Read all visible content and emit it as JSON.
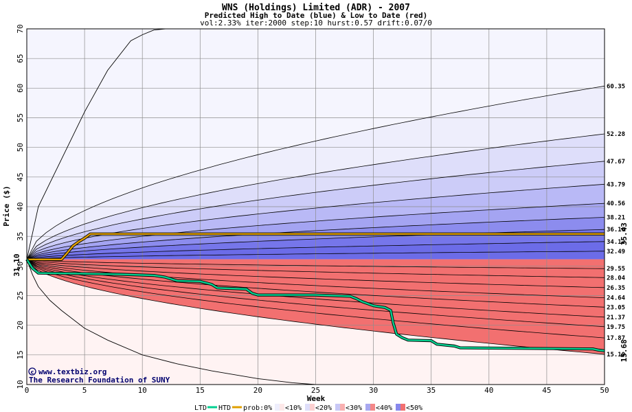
{
  "chart_data": {
    "type": "area",
    "title": "WNS (Holdings) Limited (ADR) - 2007",
    "subtitle": "Predicted High to Date (blue) &  Low to Date (red)",
    "params": "vol:2.33% iter:2000 step:10 hurst:0.57 drift:0.07/0",
    "xlabel": "Week",
    "ylabel": "Price ($)",
    "xlim": [
      0,
      50
    ],
    "ylim": [
      10,
      70
    ],
    "xticks": [
      0,
      5,
      10,
      15,
      20,
      25,
      30,
      35,
      40,
      45,
      50
    ],
    "yticks": [
      10,
      15,
      20,
      25,
      30,
      35,
      40,
      45,
      50,
      55,
      60,
      65,
      70
    ],
    "grid": true,
    "start_price": 31.1,
    "start_label": "31.10",
    "high_bands_end": [
      60.35,
      52.28,
      47.67,
      43.79,
      40.56,
      38.21,
      36.16,
      34.12,
      32.49
    ],
    "low_bands_end": [
      29.55,
      28.04,
      26.35,
      24.64,
      23.05,
      21.37,
      19.75,
      17.87,
      15.1
    ],
    "outer_high": {
      "x": [
        0,
        1,
        3,
        5,
        7,
        9,
        10,
        11,
        12,
        12.3
      ],
      "y": [
        31.1,
        40,
        48,
        56,
        63,
        68,
        69,
        69.8,
        70,
        70
      ]
    },
    "outer_low": {
      "x": [
        0,
        0.5,
        1,
        2,
        3,
        5,
        7,
        10,
        13,
        16,
        20,
        23,
        25
      ],
      "y": [
        31.1,
        28.5,
        26.5,
        24.2,
        22.5,
        19.5,
        17.5,
        15,
        13.5,
        12.3,
        11,
        10.3,
        10
      ]
    },
    "right_labels": [
      "60.35",
      "52.28",
      "47.67",
      "43.79",
      "40.56",
      "38.21",
      "36.16",
      "34.12",
      "32.49",
      "29.55",
      "28.04",
      "26.35",
      "24.64",
      "23.05",
      "21.37",
      "19.75",
      "17.87",
      "15.10"
    ],
    "htd": {
      "name": "HTD",
      "color": "#e0a000",
      "x": [
        0,
        1,
        2,
        3,
        3.5,
        4,
        4.5,
        5,
        5.5,
        50
      ],
      "y": [
        31.1,
        31.1,
        31.1,
        31.1,
        32.2,
        33.4,
        34.1,
        34.7,
        35.4,
        35.4
      ],
      "end_label": "35.43"
    },
    "ltd": {
      "name": "LTD",
      "color": "#00d090",
      "x": [
        0,
        0.5,
        1,
        5,
        8,
        11,
        12,
        13,
        15,
        16,
        16.5,
        19,
        19.5,
        20,
        21,
        25,
        28,
        28.5,
        29,
        30,
        31,
        31.5,
        31.7,
        32,
        32.5,
        33,
        35,
        35.5,
        37,
        37.5,
        49,
        49.5,
        50
      ],
      "y": [
        31.1,
        29.6,
        28.8,
        28.7,
        28.6,
        28.4,
        28.1,
        27.5,
        27.4,
        26.9,
        26.3,
        26.1,
        25.4,
        25.1,
        25.1,
        25.1,
        24.9,
        24.5,
        24.0,
        23.3,
        23.0,
        22.5,
        20.5,
        18.5,
        17.9,
        17.5,
        17.4,
        16.8,
        16.5,
        16.2,
        16.0,
        15.8,
        15.7
      ],
      "end_label": "15.68"
    },
    "legend": {
      "ltd_label": "LTD",
      "htd_label": "HTD",
      "prob_label": "prob:0%",
      "bins": [
        "<10%",
        "<20%",
        "<30%",
        "<40%",
        "<50%"
      ]
    },
    "watermark": {
      "line1": "www.textbiz.org",
      "line2": "The Research Foundation of SUNY"
    },
    "colors": {
      "blue_shades": [
        "#eeeefc",
        "#dedefa",
        "#ccccf8",
        "#b9b9f6",
        "#a4a4f2",
        "#8c8cee",
        "#7676ea",
        "#6c6ce8"
      ],
      "red_shades": [
        "#fdf0f0",
        "#fde0e0",
        "#fcd0d0",
        "#fbbcbc",
        "#f9a8a8",
        "#f79090",
        "#f47c7c",
        "#f27070"
      ],
      "outer_fill_blue": "#f5f5fe",
      "outer_fill_red": "#fff3f3",
      "grid": "#8c8c8c",
      "htd_line": "#e0a000",
      "ltd_line": "#00d090",
      "htd_label": "#a07800",
      "ltd_label": "#207050",
      "start_label": "#207050"
    }
  }
}
